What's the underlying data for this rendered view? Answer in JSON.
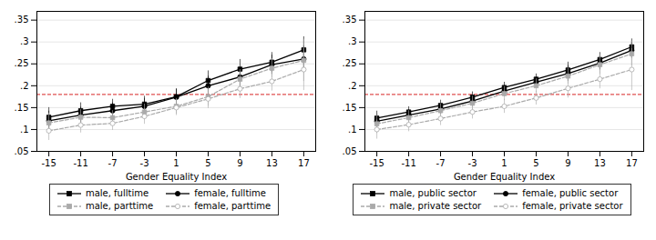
{
  "chart_data": [
    {
      "type": "line",
      "xlabel": "Gender Equality Index",
      "x": [
        -15,
        -11,
        -7,
        -3,
        1,
        5,
        9,
        13,
        17
      ],
      "xlim": [
        -16.5,
        18.5
      ],
      "xticks": [
        -15,
        -11,
        -7,
        -3,
        1,
        5,
        9,
        13,
        17
      ],
      "ylim": [
        0.05,
        0.37
      ],
      "yticks": [
        {
          "value": 0.05,
          "label": ".05"
        },
        {
          "value": 0.1,
          "label": ".1"
        },
        {
          "value": 0.15,
          "label": ".15"
        },
        {
          "value": 0.2,
          "label": ".2"
        },
        {
          "value": 0.25,
          "label": ".25"
        },
        {
          "value": 0.3,
          "label": ".3"
        },
        {
          "value": 0.35,
          "label": ".35"
        }
      ],
      "grid": "y",
      "legend": "bottom",
      "hline": {
        "value": 0.18,
        "color": "#e05050",
        "line_style": "dashed"
      },
      "series": [
        {
          "name": "male, fulltime",
          "color": "black",
          "line_style": "solid",
          "marker": "square",
          "values": [
            0.128,
            0.143,
            0.153,
            0.158,
            0.175,
            0.212,
            0.238,
            0.254,
            0.282
          ],
          "errors": [
            0.022,
            0.018,
            0.016,
            0.018,
            0.018,
            0.022,
            0.022,
            0.022,
            0.03
          ]
        },
        {
          "name": "female, fulltime",
          "color": "black",
          "line_style": "solid",
          "marker": "circle",
          "values": [
            0.12,
            0.133,
            0.143,
            0.153,
            0.174,
            0.2,
            0.22,
            0.248,
            0.261
          ],
          "errors": [
            0.022,
            0.018,
            0.018,
            0.018,
            0.018,
            0.022,
            0.022,
            0.022,
            0.03
          ]
        },
        {
          "name": "male, parttime",
          "color": "#aaaaaa",
          "line_style": "dashed",
          "marker": "square",
          "values": [
            0.115,
            0.128,
            0.127,
            0.14,
            0.153,
            0.175,
            0.215,
            0.24,
            0.258
          ],
          "errors": [
            0.022,
            0.018,
            0.016,
            0.018,
            0.018,
            0.022,
            0.022,
            0.022,
            0.048
          ]
        },
        {
          "name": "female, parttime",
          "color": "#aaaaaa",
          "line_style": "dashed",
          "marker": "open_circle",
          "values": [
            0.097,
            0.11,
            0.114,
            0.13,
            0.15,
            0.17,
            0.193,
            0.21,
            0.237
          ],
          "errors": [
            0.022,
            0.018,
            0.016,
            0.018,
            0.018,
            0.022,
            0.022,
            0.022,
            0.048
          ]
        }
      ]
    },
    {
      "type": "line",
      "xlabel": "Gender Equality Index",
      "x": [
        -15,
        -11,
        -7,
        -3,
        1,
        5,
        9,
        13,
        17
      ],
      "xlim": [
        -16.5,
        18.5
      ],
      "xticks": [
        -15,
        -11,
        -7,
        -3,
        1,
        5,
        9,
        13,
        17
      ],
      "ylim": [
        0.05,
        0.37
      ],
      "yticks": [
        {
          "value": 0.05,
          "label": ".05"
        },
        {
          "value": 0.1,
          "label": ".1"
        },
        {
          "value": 0.15,
          "label": ".15"
        },
        {
          "value": 0.2,
          "label": ".2"
        },
        {
          "value": 0.25,
          "label": ".25"
        },
        {
          "value": 0.3,
          "label": ".3"
        },
        {
          "value": 0.35,
          "label": ".35"
        }
      ],
      "grid": "y",
      "legend": "bottom",
      "hline": {
        "value": 0.18,
        "color": "#e05050",
        "line_style": "dashed"
      },
      "series": [
        {
          "name": "male, public sector",
          "color": "black",
          "line_style": "solid",
          "marker": "square",
          "values": [
            0.126,
            0.14,
            0.155,
            0.174,
            0.196,
            0.215,
            0.236,
            0.26,
            0.289
          ],
          "errors": [
            0.016,
            0.012,
            0.012,
            0.012,
            0.012,
            0.012,
            0.018,
            0.016,
            0.018
          ]
        },
        {
          "name": "female, public sector",
          "color": "black",
          "line_style": "solid",
          "marker": "circle",
          "values": [
            0.119,
            0.133,
            0.147,
            0.165,
            0.188,
            0.208,
            0.228,
            0.252,
            0.281
          ],
          "errors": [
            0.016,
            0.012,
            0.012,
            0.012,
            0.012,
            0.012,
            0.018,
            0.016,
            0.018
          ]
        },
        {
          "name": "male, private sector",
          "color": "#aaaaaa",
          "line_style": "dashed",
          "marker": "square",
          "values": [
            0.113,
            0.127,
            0.143,
            0.16,
            0.182,
            0.2,
            0.222,
            0.248,
            0.273
          ],
          "errors": [
            0.022,
            0.016,
            0.016,
            0.016,
            0.016,
            0.016,
            0.018,
            0.022,
            0.028
          ]
        },
        {
          "name": "female, private sector",
          "color": "#aaaaaa",
          "line_style": "dashed",
          "marker": "open_circle",
          "values": [
            0.1,
            0.111,
            0.125,
            0.14,
            0.153,
            0.172,
            0.194,
            0.215,
            0.237
          ],
          "errors": [
            0.022,
            0.016,
            0.016,
            0.016,
            0.016,
            0.016,
            0.022,
            0.022,
            0.048
          ]
        }
      ]
    }
  ]
}
